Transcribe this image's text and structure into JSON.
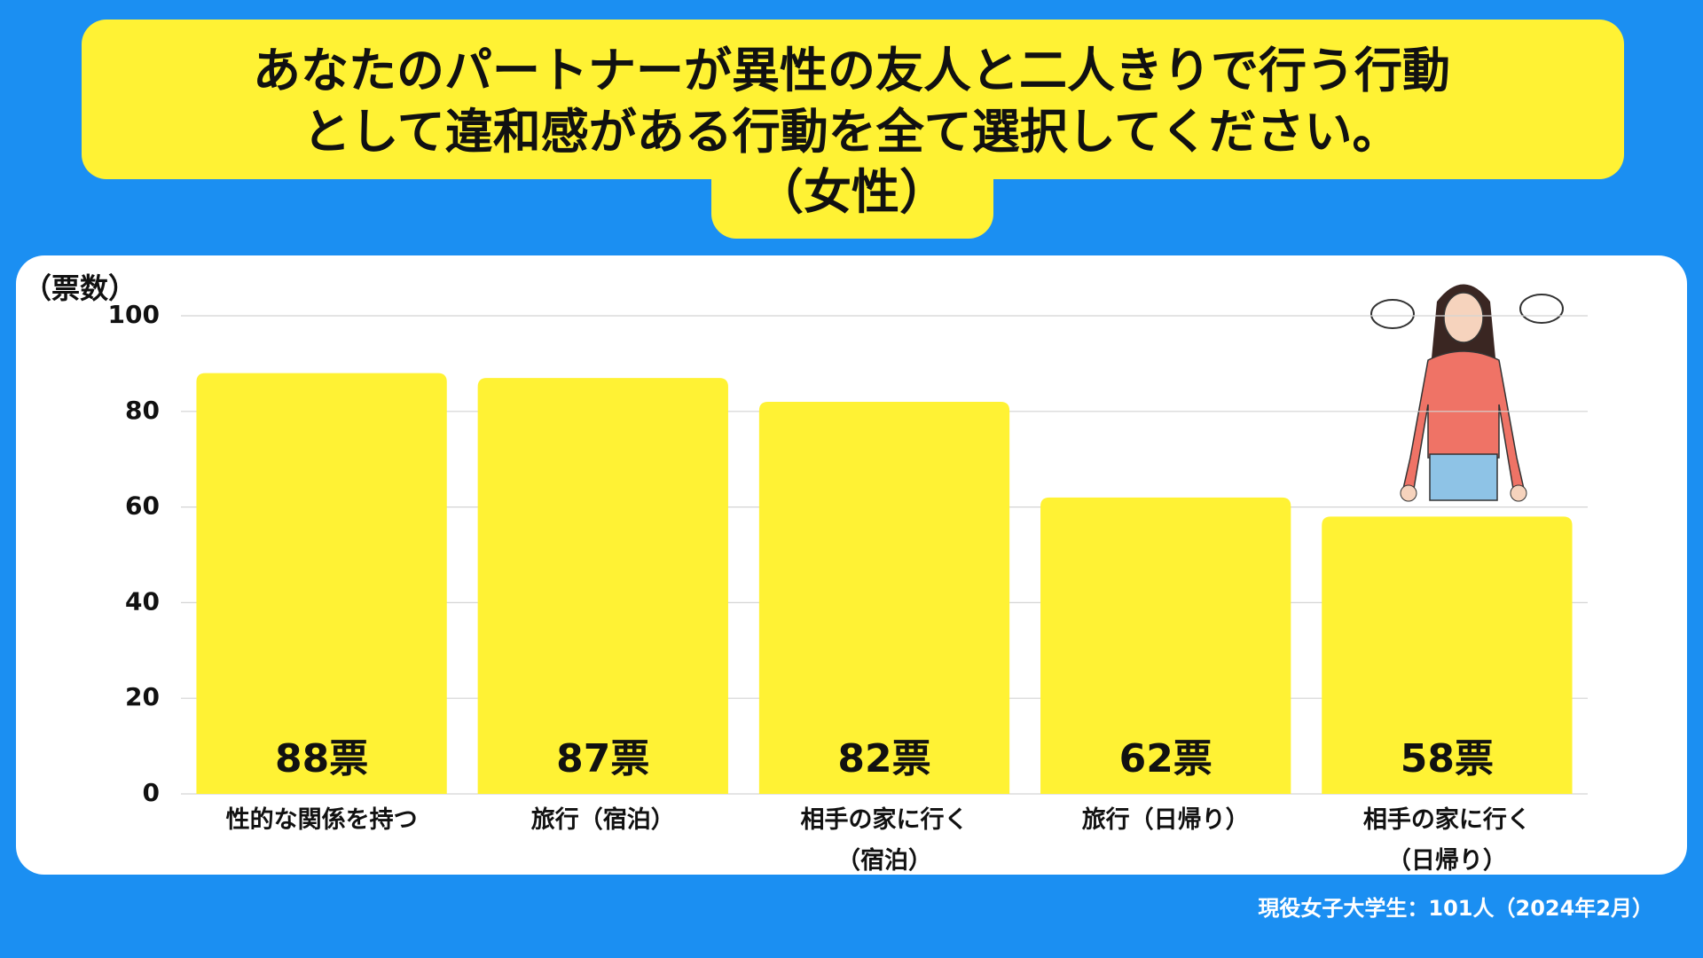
{
  "chart_data": {
    "type": "bar",
    "title": [
      "あなたのパートナーが異性の友人と二人きりで行う行動",
      "として違和感がある行動を全て選択してください。",
      "（女性）"
    ],
    "y_label": "（票数）",
    "categories": [
      "性的な関係を持つ",
      "旅行（宿泊）",
      "相手の家に行く\n（宿泊）",
      "旅行（日帰り）",
      "相手の家に行く\n（日帰り）"
    ],
    "values": [
      88,
      87,
      82,
      62,
      58
    ],
    "value_labels": [
      "88票",
      "87票",
      "82票",
      "62票",
      "58票"
    ],
    "color": "#fff234",
    "ylim": [
      0,
      100
    ],
    "yticks": [
      0,
      20,
      40,
      60,
      80,
      100
    ],
    "grid": true,
    "footnote": "現役女子大学生：101人（2024年2月）"
  }
}
